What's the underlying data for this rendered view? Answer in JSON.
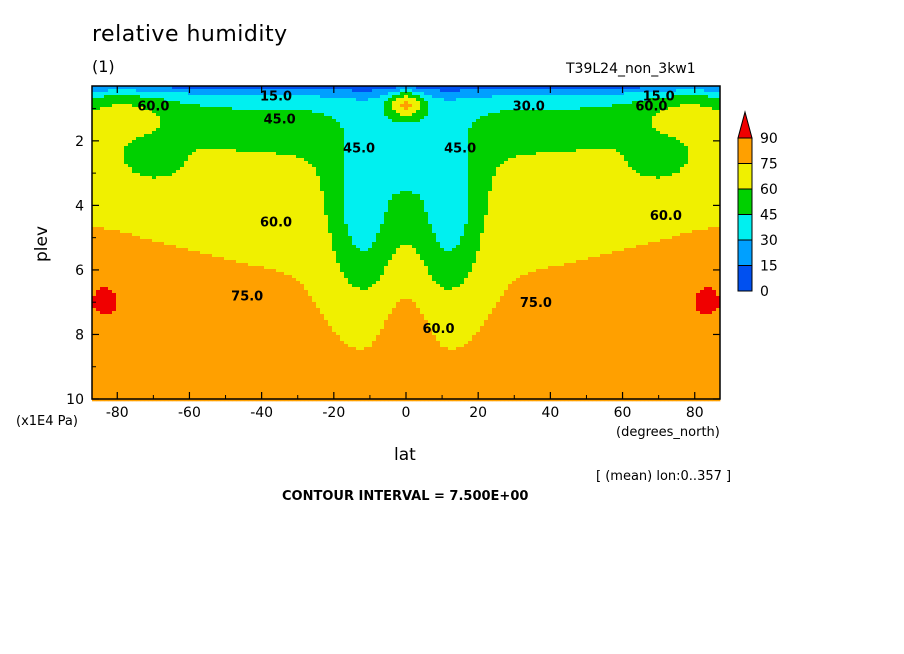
{
  "chart_data": {
    "type": "heatmap",
    "title": "relative humidity",
    "unit_label": "(1)",
    "run_label": "T39L24_non_3kw1",
    "xlabel": "lat",
    "x_unit": "(degrees_north)",
    "ylabel": "plev",
    "y_unit": "(x1E4 Pa)",
    "mean_note": "[ (mean) lon:0..357 ]",
    "contour_interval": "CONTOUR INTERVAL = 7.500E+00",
    "xlim": [
      -87,
      87
    ],
    "ylim": [
      10,
      0.3
    ],
    "x_ticks": [
      "-80",
      "-60",
      "-40",
      "-20",
      "0",
      "20",
      "40",
      "60",
      "80"
    ],
    "y_ticks": [
      "2",
      "4",
      "6",
      "8",
      "10"
    ],
    "x_tick_values": [
      -80,
      -60,
      -40,
      -20,
      0,
      20,
      40,
      60,
      80
    ],
    "y_tick_values": [
      2,
      4,
      6,
      8,
      10
    ],
    "legend": {
      "position": "right",
      "levels": [
        "0",
        "15",
        "30",
        "45",
        "60",
        "75",
        "90"
      ],
      "colors": [
        "#0050f0",
        "#00a0ff",
        "#00f0f0",
        "#00d000",
        "#f0f000",
        "#ffa000",
        "#f00000"
      ]
    },
    "contour_labels": [
      {
        "text": "15.0",
        "lat": -36,
        "plev": 0.6
      },
      {
        "text": "15.0",
        "lat": 70,
        "plev": 0.6
      },
      {
        "text": "30.0",
        "lat": 34,
        "plev": 0.9
      },
      {
        "text": "60.0",
        "lat": -70,
        "plev": 0.9
      },
      {
        "text": "60.0",
        "lat": 68,
        "plev": 0.9
      },
      {
        "text": "45.0",
        "lat": -35,
        "plev": 1.3
      },
      {
        "text": "45.0",
        "lat": -13,
        "plev": 2.2
      },
      {
        "text": "45.0",
        "lat": 15,
        "plev": 2.2
      },
      {
        "text": "60.0",
        "lat": -36,
        "plev": 4.5
      },
      {
        "text": "60.0",
        "lat": 72,
        "plev": 4.3
      },
      {
        "text": "75.0",
        "lat": -44,
        "plev": 6.8
      },
      {
        "text": "75.0",
        "lat": 36,
        "plev": 7.0
      },
      {
        "text": "60.0",
        "lat": 9,
        "plev": 7.8
      }
    ]
  }
}
